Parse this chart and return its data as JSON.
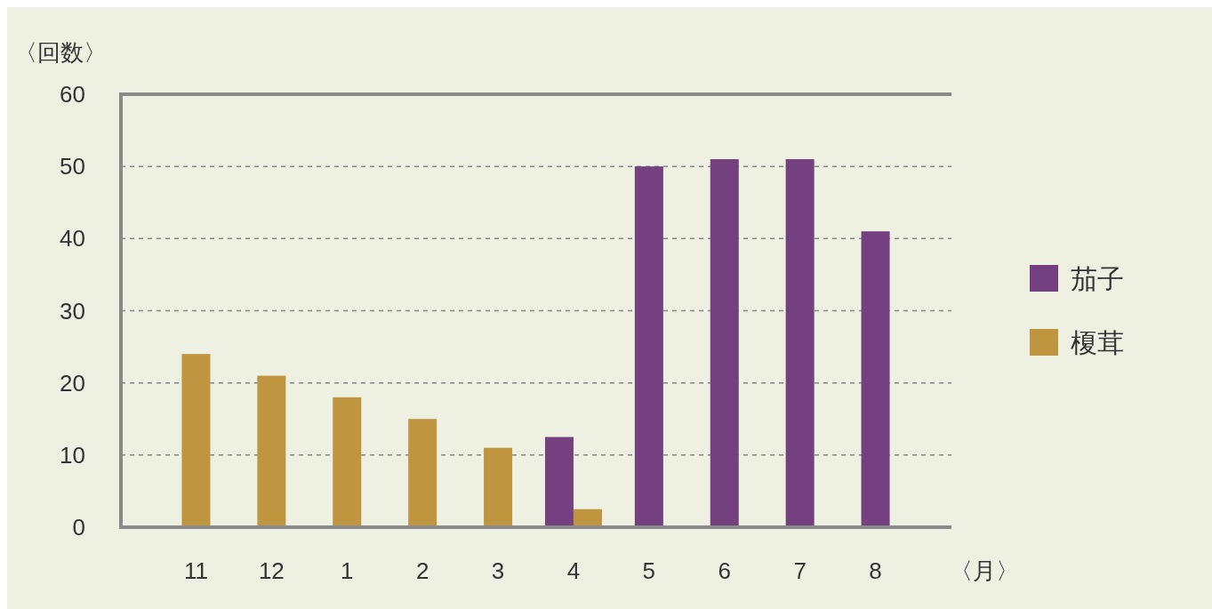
{
  "chart_data": {
    "type": "bar",
    "xlabel": "〈月〉",
    "ylabel": "〈回数〉",
    "categories": [
      "11",
      "12",
      "1",
      "2",
      "3",
      "4",
      "5",
      "6",
      "7",
      "8"
    ],
    "series": [
      {
        "name": "茄子",
        "color": "#74407f",
        "values": [
          null,
          null,
          null,
          null,
          null,
          12.5,
          50,
          51,
          51,
          41
        ]
      },
      {
        "name": "榎茸",
        "color": "#c0953f",
        "values": [
          24,
          21,
          18,
          15,
          11,
          2.5,
          null,
          null,
          null,
          null
        ]
      }
    ],
    "ylim": [
      0,
      60
    ],
    "yticks": [
      0,
      10,
      20,
      30,
      40,
      50,
      60
    ],
    "grid": "y",
    "legend": "right"
  }
}
